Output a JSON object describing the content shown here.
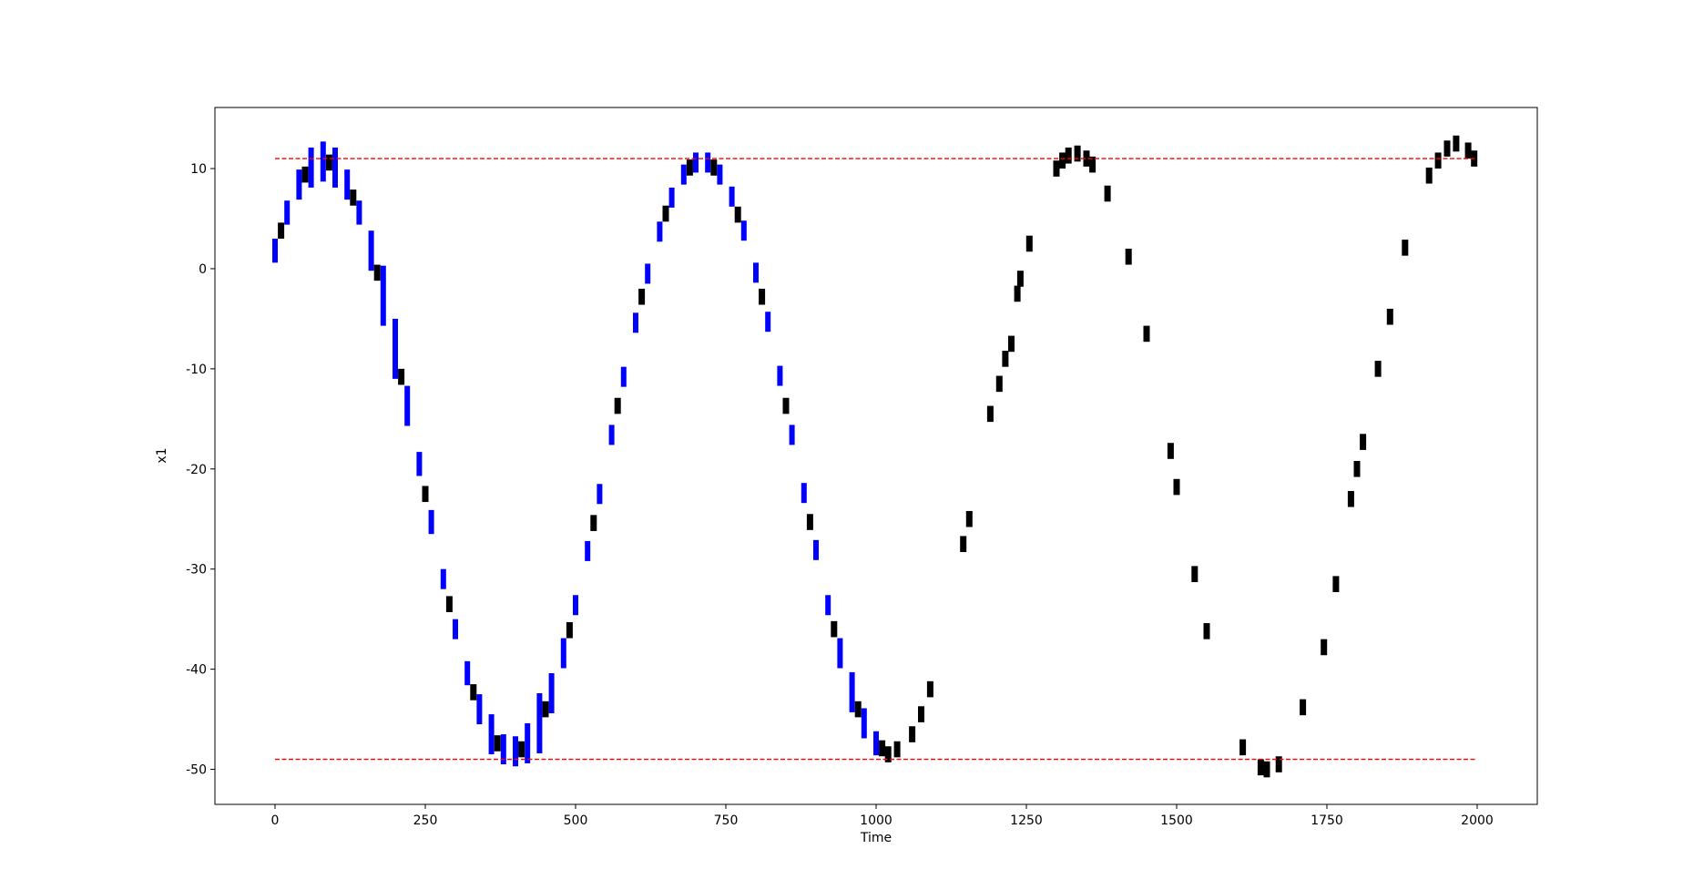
{
  "chart_data": {
    "type": "errorbar",
    "xlabel": "Time",
    "ylabel": "x1",
    "xlim": [
      -100,
      2100
    ],
    "ylim": [
      -53.5,
      16.1
    ],
    "xticks": [
      0,
      250,
      500,
      750,
      1000,
      1250,
      1500,
      1750,
      2000
    ],
    "yticks": [
      -50,
      -40,
      -30,
      -20,
      -10,
      0,
      10
    ],
    "hlines": [
      {
        "y": 11,
        "xmin": 0,
        "xmax": 2000,
        "color": "#ff0000"
      },
      {
        "y": -49,
        "xmin": 0,
        "xmax": 2000,
        "color": "#ff0000"
      }
    ],
    "series": [
      {
        "color": "#0000ff",
        "x": [
          0,
          20,
          40,
          60,
          80,
          100,
          120,
          140,
          160,
          180,
          200,
          220,
          240,
          260,
          280,
          300,
          320,
          340,
          360,
          380,
          400,
          420,
          440,
          460,
          480,
          500,
          520,
          540,
          560,
          580,
          600,
          620,
          640,
          660,
          680,
          700,
          720,
          740,
          760,
          780,
          800,
          820,
          840,
          860,
          880,
          900,
          920,
          940,
          960,
          980,
          1000
        ],
        "values": [
          1.8,
          5.6,
          8.4,
          10.1,
          10.7,
          10.1,
          8.4,
          5.6,
          1.8,
          -2.7,
          -8.0,
          -13.7,
          -19.5,
          -25.3,
          -31.0,
          -36.0,
          -40.4,
          -44.0,
          -46.5,
          -48.0,
          -48.2,
          -47.4,
          -45.4,
          -42.4,
          -38.4,
          -33.6,
          -28.2,
          -22.5,
          -16.6,
          -10.8,
          -5.4,
          -0.5,
          3.7,
          7.1,
          9.4,
          10.6,
          10.6,
          9.4,
          7.2,
          3.8,
          -0.4,
          -5.3,
          -10.7,
          -16.6,
          -22.4,
          -28.1,
          -33.6,
          -38.4,
          -42.3,
          -45.4,
          -47.4
        ],
        "errors": [
          1.2,
          1.2,
          1.5,
          2,
          2,
          2,
          1.5,
          1.2,
          2,
          3,
          3,
          2,
          1.2,
          1.2,
          1,
          1,
          1.2,
          1.5,
          2,
          1.5,
          1.5,
          2,
          3,
          2,
          1.5,
          1,
          1,
          1,
          1,
          1,
          1,
          1,
          1,
          1,
          1,
          1,
          1,
          1,
          1,
          1,
          1,
          1,
          1,
          1,
          1,
          1,
          1,
          1.5,
          2,
          1.5,
          1.2
        ]
      },
      {
        "color": "#000000",
        "x": [
          10,
          50,
          90,
          130,
          170,
          210,
          250,
          290,
          330,
          370,
          410,
          450,
          490,
          530,
          570,
          610,
          650,
          690,
          730,
          770,
          810,
          850,
          890,
          930,
          970,
          1010,
          1020,
          1035,
          1060,
          1075,
          1090,
          1145,
          1155,
          1190,
          1205,
          1215,
          1225,
          1235,
          1240,
          1255,
          1300,
          1310,
          1320,
          1335,
          1350,
          1360,
          1385,
          1420,
          1450,
          1490,
          1500,
          1530,
          1550,
          1610,
          1640,
          1650,
          1670,
          1710,
          1745,
          1765,
          1790,
          1800,
          1810,
          1835,
          1855,
          1880,
          1920,
          1935,
          1950,
          1965,
          1985,
          1995
        ],
        "values": [
          3.8,
          9.4,
          10.6,
          7.1,
          -0.4,
          -10.8,
          -22.5,
          -33.5,
          -42.3,
          -47.4,
          -48.0,
          -44.0,
          -36.1,
          -25.4,
          -13.7,
          -2.8,
          5.5,
          10.1,
          10.1,
          5.4,
          -2.8,
          -13.7,
          -25.3,
          -36.0,
          -44.0,
          -47.9,
          -48.5,
          -48,
          -46.5,
          -44.5,
          -42,
          -27.5,
          -25,
          -14.5,
          -11.5,
          -9,
          -7.5,
          -2.5,
          -1,
          2.5,
          10,
          10.8,
          11.3,
          11.5,
          11,
          10.4,
          7.5,
          1.2,
          -6.5,
          -18.2,
          -21.8,
          -30.5,
          -36.2,
          -47.8,
          -49.8,
          -50,
          -49.5,
          -43.8,
          -37.8,
          -31.5,
          -23,
          -20,
          -17.3,
          -10,
          -4.8,
          2.1,
          9.3,
          10.8,
          12,
          12.5,
          11.8,
          11
        ],
        "errors": [
          0.8,
          0.8,
          0.8,
          0.8,
          0.8,
          0.8,
          0.8,
          0.8,
          0.8,
          0.8,
          0.8,
          0.8,
          0.8,
          0.8,
          0.8,
          0.8,
          0.8,
          0.8,
          0.8,
          0.8,
          0.8,
          0.8,
          0.8,
          0.8,
          0.8,
          0.8,
          0.8,
          0.8,
          0.8,
          0.8,
          0.8,
          0.8,
          0.8,
          0.8,
          0.8,
          0.8,
          0.8,
          0.8,
          0.8,
          0.8,
          0.8,
          0.8,
          0.8,
          0.8,
          0.8,
          0.8,
          0.8,
          0.8,
          0.8,
          0.8,
          0.8,
          0.8,
          0.8,
          0.8,
          0.8,
          0.8,
          0.8,
          0.8,
          0.8,
          0.8,
          0.8,
          0.8,
          0.8,
          0.8,
          0.8,
          0.8,
          0.8,
          0.8,
          0.8,
          0.8,
          0.8,
          0.8
        ]
      }
    ]
  }
}
